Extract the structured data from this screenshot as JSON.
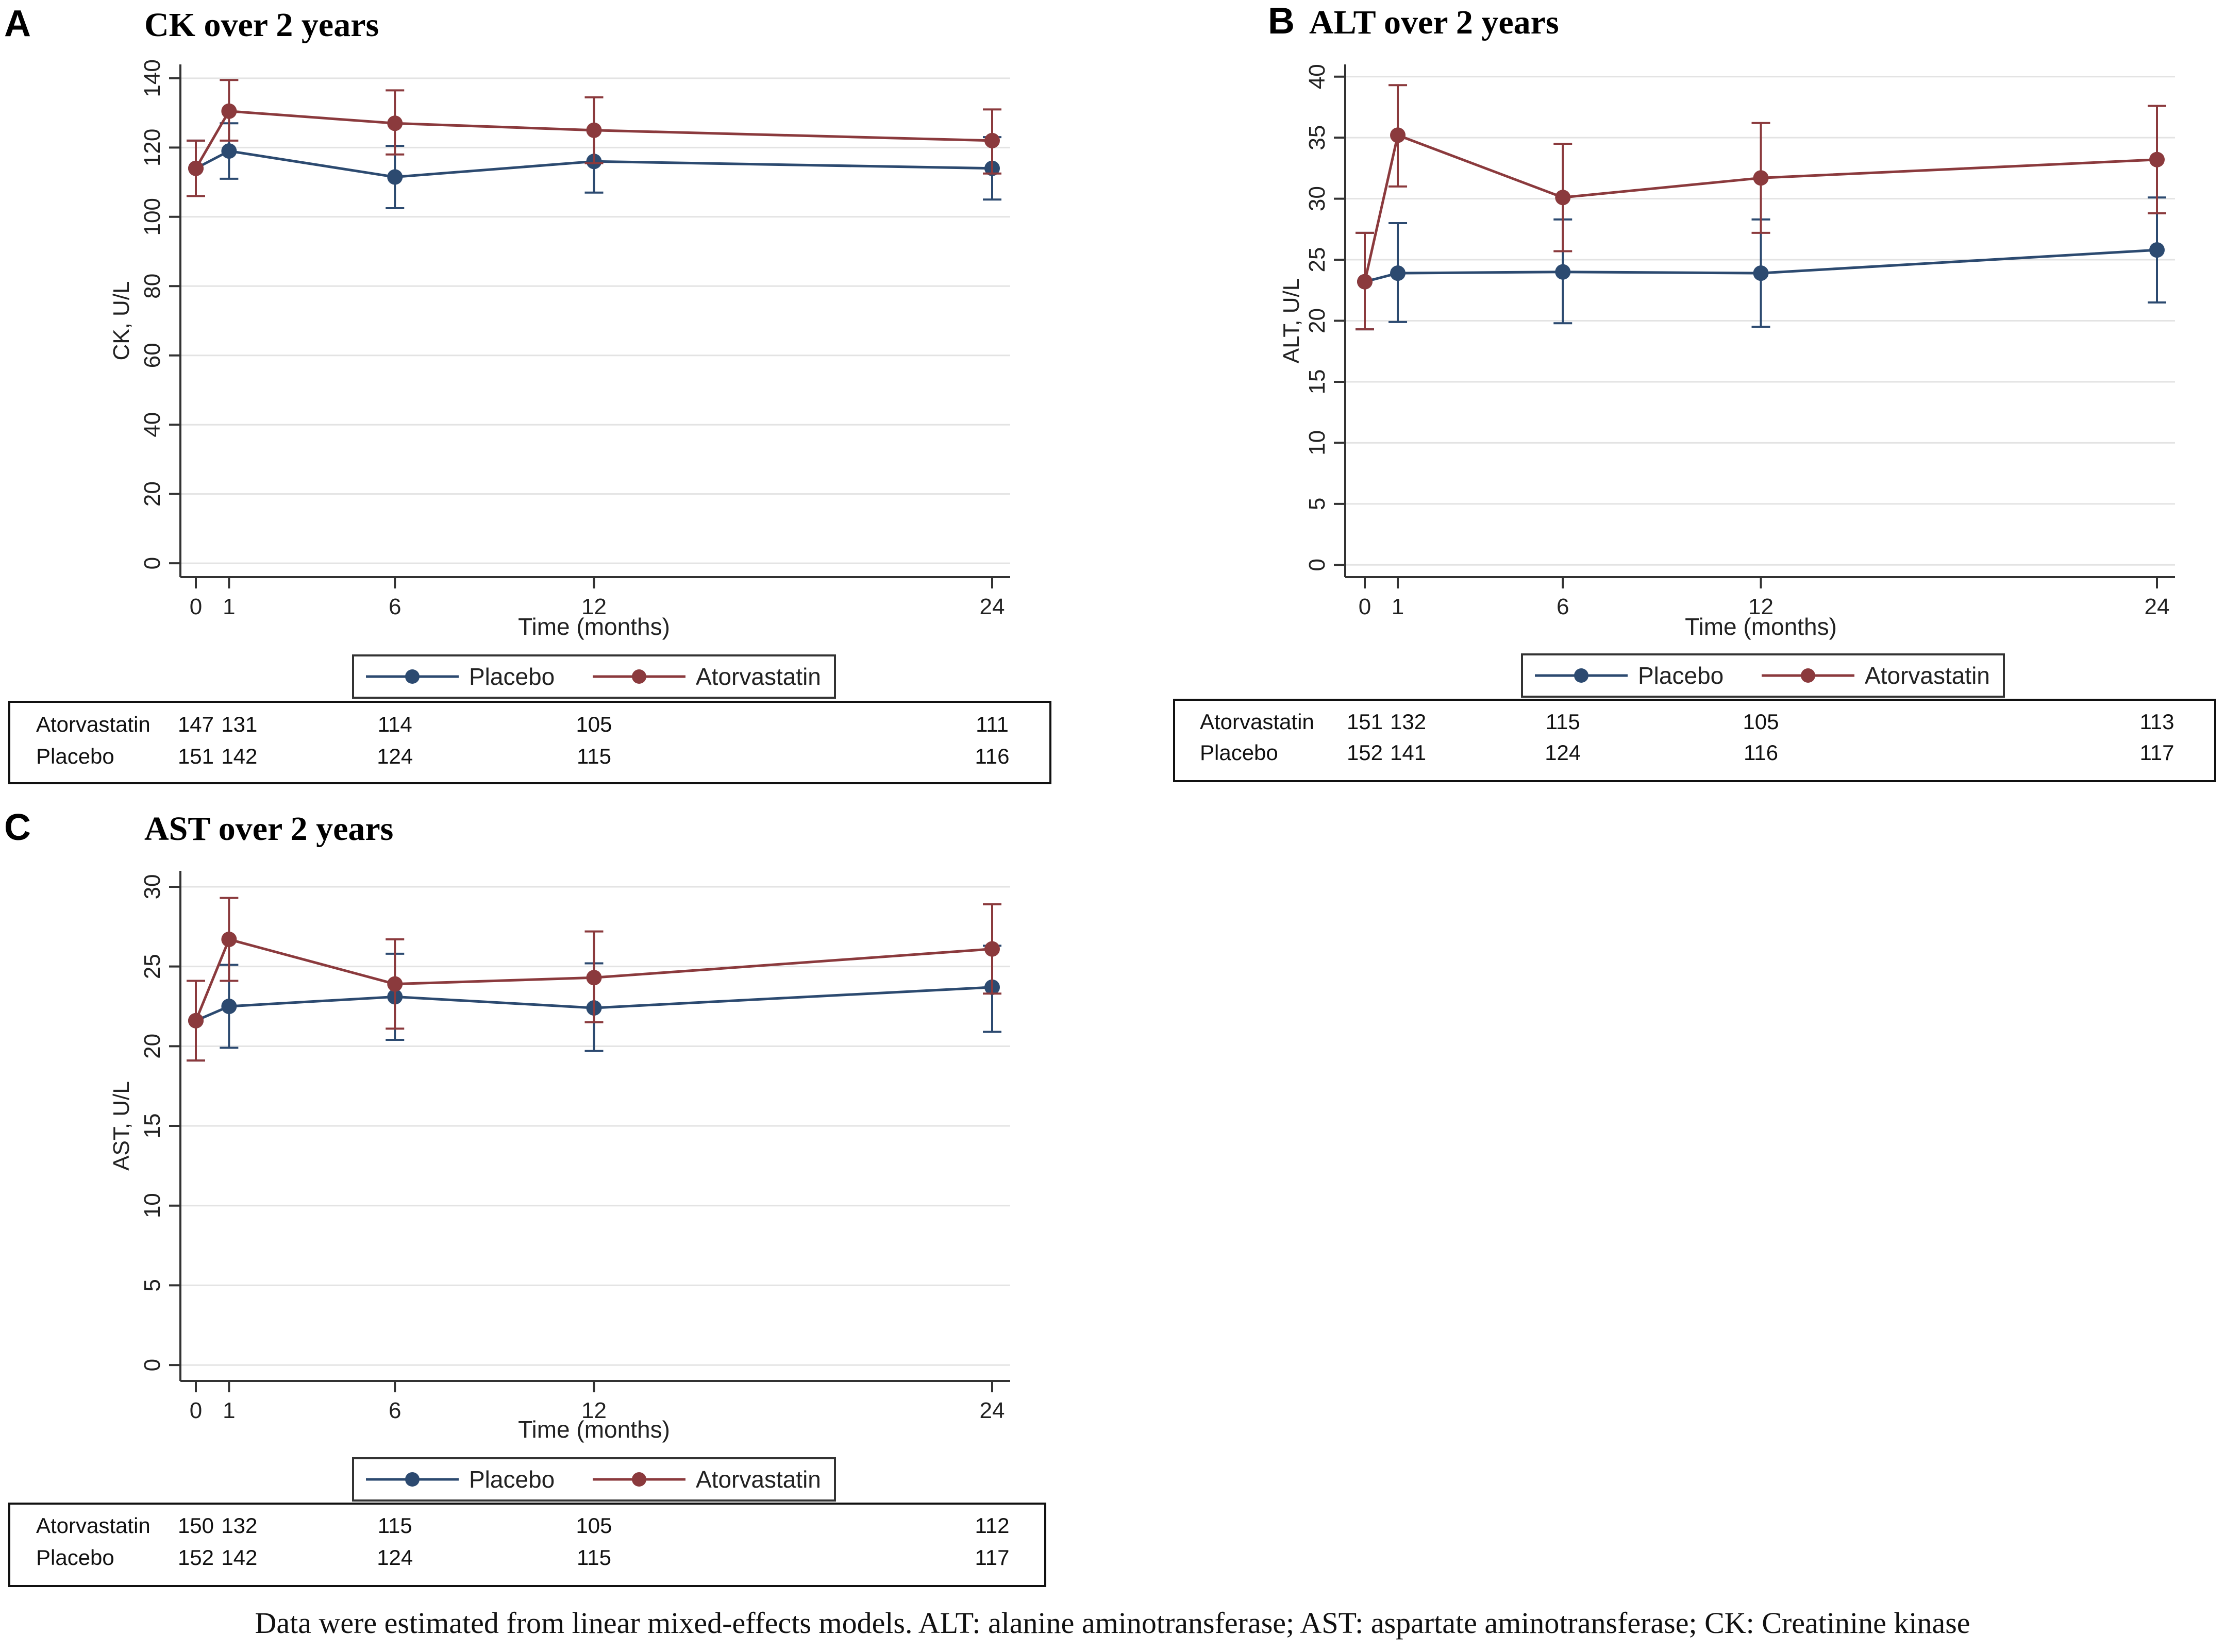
{
  "caption": "Data were estimated from linear mixed-effects models. ALT: alanine aminotransferase; AST: aspartate aminotransferase; CK: Creatinine kinase",
  "colors": {
    "placebo": "#2c4a70",
    "atorvastatin": "#8b3a3d",
    "grid": "#e3e3e3",
    "axis": "#333333"
  },
  "icons": [
    "legend-line-marker-icon"
  ],
  "chart_data": [
    {
      "panel_label": "A",
      "type": "line",
      "title": "CK over 2 years",
      "xlabel": "Time (months)",
      "ylabel": "CK, U/L",
      "x": [
        0,
        1,
        6,
        12,
        24
      ],
      "xticks": [
        "0",
        "1",
        "6",
        "12",
        "24"
      ],
      "yticks": [
        "0",
        "20",
        "40",
        "60",
        "80",
        "100",
        "120",
        "140"
      ],
      "ylim": [
        -4,
        144
      ],
      "grid": true,
      "legend": [
        "Placebo",
        "Atorvastatin"
      ],
      "series": [
        {
          "name": "Placebo",
          "color": "#2c4a70",
          "values": [
            114,
            119,
            111.5,
            116,
            114
          ],
          "lower": [
            106,
            111,
            102.5,
            107,
            105
          ],
          "upper": [
            122,
            127,
            120.5,
            125,
            123
          ]
        },
        {
          "name": "Atorvastatin",
          "color": "#8b3a3d",
          "values": [
            114,
            130.5,
            127,
            125,
            122
          ],
          "lower": [
            106,
            122,
            118,
            115.5,
            112.5
          ],
          "upper": [
            122,
            139.5,
            136.5,
            134.5,
            131
          ]
        }
      ],
      "risk_table": [
        {
          "label": "Atorvastatin",
          "counts": [
            "147",
            "131",
            "114",
            "105",
            "111"
          ]
        },
        {
          "label": "Placebo",
          "counts": [
            "151",
            "142",
            "124",
            "115",
            "116"
          ]
        }
      ]
    },
    {
      "panel_label": "B",
      "type": "line",
      "title": "ALT over 2 years",
      "xlabel": "Time (months)",
      "ylabel": "ALT, U/L",
      "x": [
        0,
        1,
        6,
        12,
        24
      ],
      "xticks": [
        "0",
        "1",
        "6",
        "12",
        "24"
      ],
      "yticks": [
        "0",
        "5",
        "10",
        "15",
        "20",
        "25",
        "30",
        "35",
        "40"
      ],
      "ylim": [
        -1,
        41
      ],
      "grid": true,
      "legend": [
        "Placebo",
        "Atorvastatin"
      ],
      "series": [
        {
          "name": "Placebo",
          "color": "#2c4a70",
          "values": [
            23.2,
            23.9,
            24,
            23.9,
            25.8
          ],
          "lower": [
            19.3,
            19.9,
            19.8,
            19.5,
            21.5
          ],
          "upper": [
            27.2,
            28,
            28.3,
            28.3,
            30.1
          ]
        },
        {
          "name": "Atorvastatin",
          "color": "#8b3a3d",
          "values": [
            23.2,
            35.2,
            30.1,
            31.7,
            33.2
          ],
          "lower": [
            19.3,
            31,
            25.7,
            27.2,
            28.8
          ],
          "upper": [
            27.2,
            39.3,
            34.5,
            36.2,
            37.6
          ]
        }
      ],
      "risk_table": [
        {
          "label": "Atorvastatin",
          "counts": [
            "151",
            "132",
            "115",
            "105",
            "113"
          ]
        },
        {
          "label": "Placebo",
          "counts": [
            "152",
            "141",
            "124",
            "116",
            "117"
          ]
        }
      ]
    },
    {
      "panel_label": "C",
      "type": "line",
      "title": "AST over 2 years",
      "xlabel": "Time (months)",
      "ylabel": "AST, U/L",
      "x": [
        0,
        1,
        6,
        12,
        24
      ],
      "xticks": [
        "0",
        "1",
        "6",
        "12",
        "24"
      ],
      "yticks": [
        "0",
        "5",
        "10",
        "15",
        "20",
        "25",
        "30"
      ],
      "ylim": [
        -1,
        31
      ],
      "grid": true,
      "legend": [
        "Placebo",
        "Atorvastatin"
      ],
      "series": [
        {
          "name": "Placebo",
          "color": "#2c4a70",
          "values": [
            21.6,
            22.5,
            23.1,
            22.4,
            23.7
          ],
          "lower": [
            19.1,
            19.9,
            20.4,
            19.7,
            20.9
          ],
          "upper": [
            24.1,
            25.1,
            25.8,
            25.2,
            26.3
          ]
        },
        {
          "name": "Atorvastatin",
          "color": "#8b3a3d",
          "values": [
            21.6,
            26.7,
            23.9,
            24.3,
            26.1
          ],
          "lower": [
            19.1,
            24.1,
            21.1,
            21.5,
            23.3
          ],
          "upper": [
            24.1,
            29.3,
            26.7,
            27.2,
            28.9
          ]
        }
      ],
      "risk_table": [
        {
          "label": "Atorvastatin",
          "counts": [
            "150",
            "132",
            "115",
            "105",
            "112"
          ]
        },
        {
          "label": "Placebo",
          "counts": [
            "152",
            "142",
            "124",
            "115",
            "117"
          ]
        }
      ]
    }
  ]
}
